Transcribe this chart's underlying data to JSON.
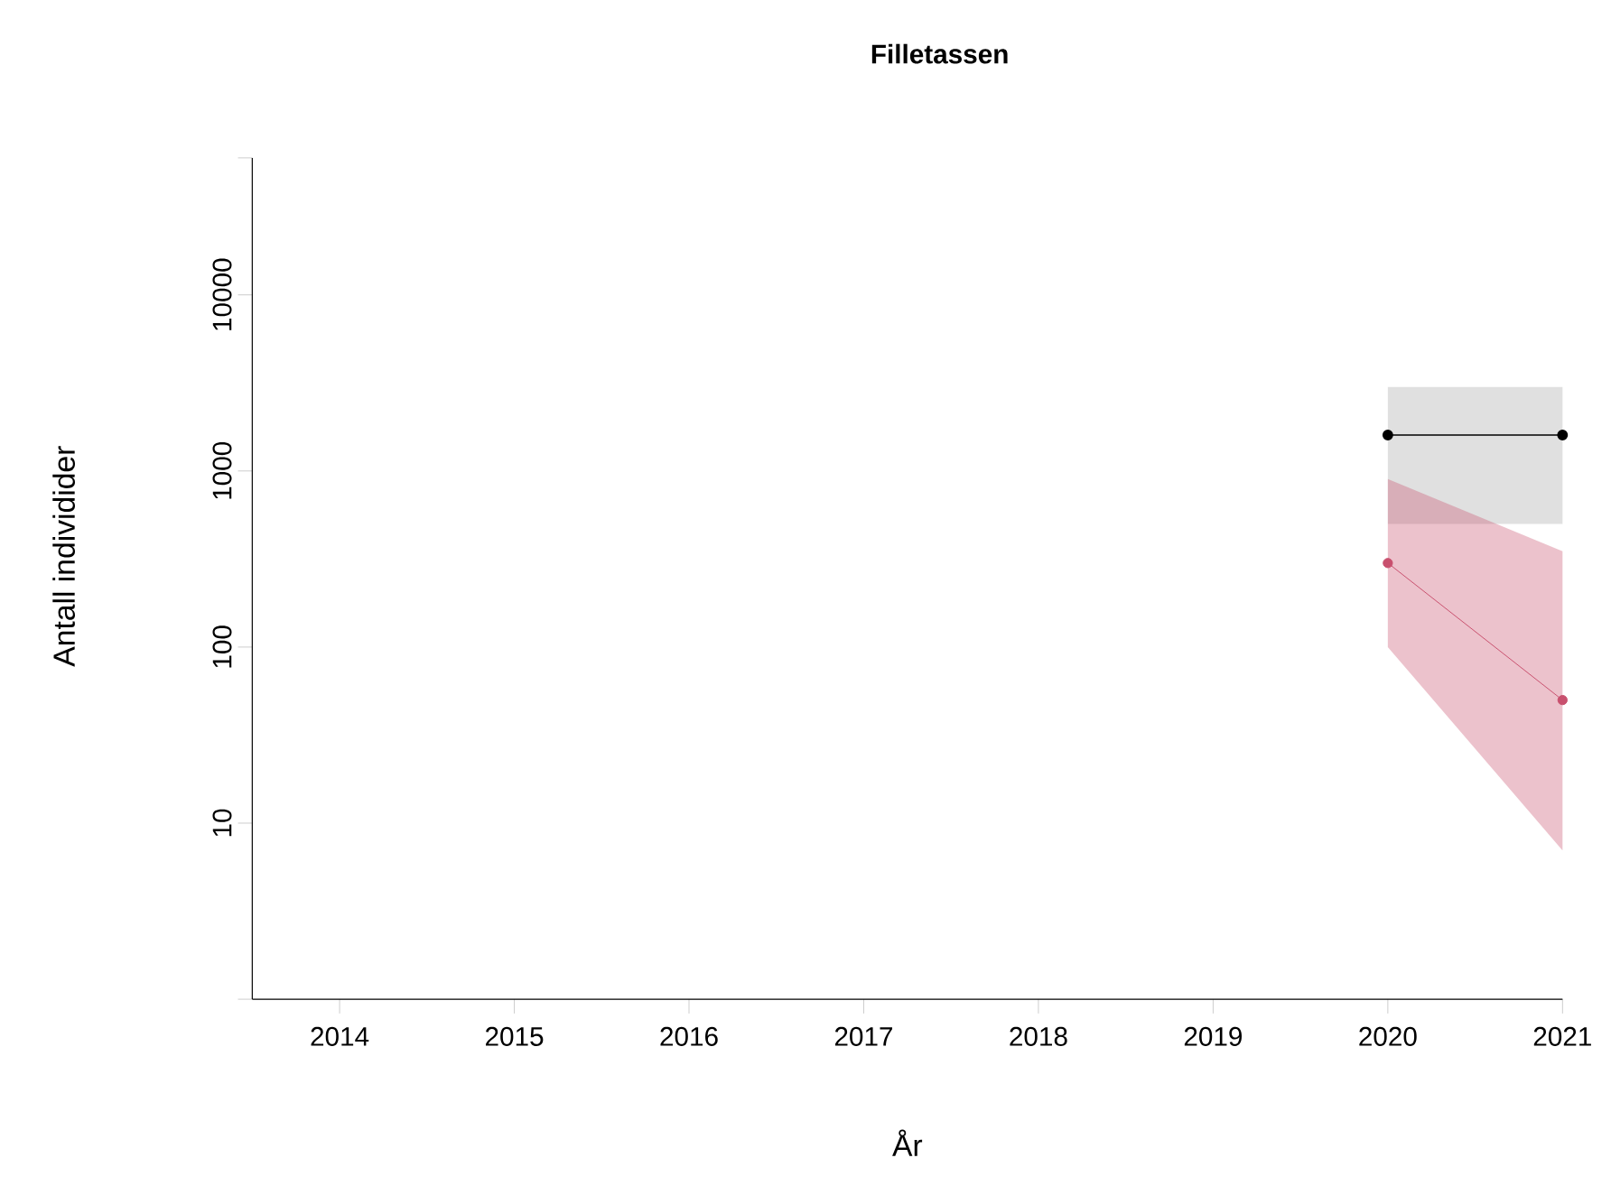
{
  "chart_data": {
    "type": "line",
    "title": "Filletassen",
    "xlabel": "År",
    "ylabel": "Antall individider",
    "x": [
      2020,
      2021
    ],
    "series": [
      {
        "color": "#000000",
        "values": [
          1600,
          1600
        ],
        "lower": [
          500,
          500
        ],
        "upper": [
          3000,
          3000
        ]
      },
      {
        "color": "#c8506e",
        "values": [
          300,
          50
        ],
        "lower": [
          100,
          7
        ],
        "upper": [
          900,
          350
        ]
      }
    ],
    "log": "y",
    "marker": "circle",
    "line_style": "solid",
    "xlim": [
      2013.5,
      2021
    ],
    "xticks": [
      2014,
      2015,
      2016,
      2017,
      2018,
      2019,
      2020,
      2021
    ],
    "ylim": [
      1,
      60000
    ],
    "yticks": [
      {
        "value": 1,
        "label": null
      },
      10,
      100,
      1000,
      10000,
      {
        "value": 60000,
        "label": null
      }
    ]
  }
}
